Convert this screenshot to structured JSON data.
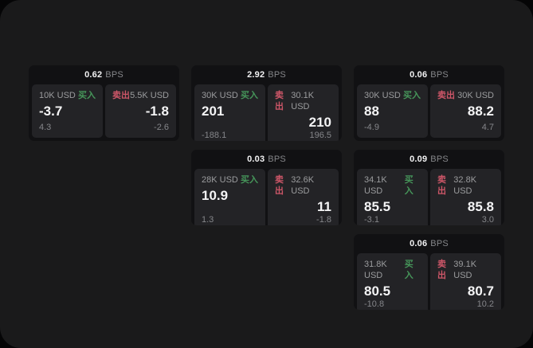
{
  "labels": {
    "bps_unit": "BPS",
    "buy": "买入",
    "sell": "卖出"
  },
  "colors": {
    "surface": "#1a1a1b",
    "card": "#111113",
    "panel": "#232326",
    "buy_green": "#46965a",
    "sell_red": "#cd5668"
  },
  "cards": [
    {
      "bps": "0.62",
      "buy": {
        "size": "10K USD",
        "price": "-3.7",
        "delta": "4.3"
      },
      "sell": {
        "size": "5.5K USD",
        "price": "-1.8",
        "delta": "-2.6"
      }
    },
    {
      "bps": "2.92",
      "buy": {
        "size": "30K USD",
        "price": "201",
        "delta": "-188.1"
      },
      "sell": {
        "size": "30.1K USD",
        "price": "210",
        "delta": "196.5"
      }
    },
    {
      "bps": "0.06",
      "buy": {
        "size": "30K USD",
        "price": "88",
        "delta": "-4.9"
      },
      "sell": {
        "size": "30K USD",
        "price": "88.2",
        "delta": "4.7"
      }
    },
    {
      "bps": "0.03",
      "buy": {
        "size": "28K USD",
        "price": "10.9",
        "delta": "1.3"
      },
      "sell": {
        "size": "32.6K USD",
        "price": "11",
        "delta": "-1.8"
      }
    },
    {
      "bps": "0.09",
      "buy": {
        "size": "34.1K USD",
        "price": "85.5",
        "delta": "-3.1"
      },
      "sell": {
        "size": "32.8K USD",
        "price": "85.8",
        "delta": "3.0"
      }
    },
    {
      "bps": "0.06",
      "buy": {
        "size": "31.8K USD",
        "price": "80.5",
        "delta": "-10.8"
      },
      "sell": {
        "size": "39.1K USD",
        "price": "80.7",
        "delta": "10.2"
      }
    }
  ]
}
